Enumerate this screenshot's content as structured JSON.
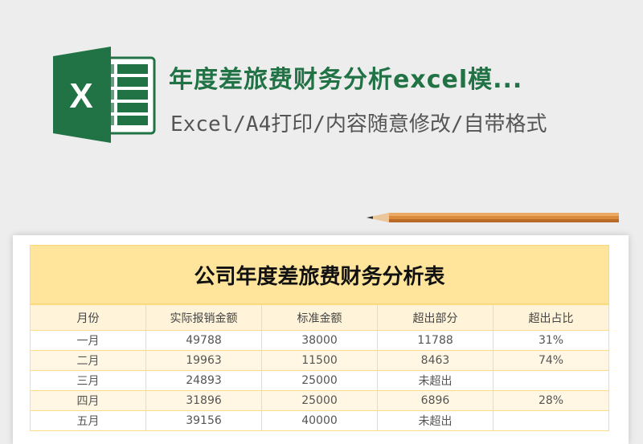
{
  "header": {
    "title": "年度差旅费财务分析excel模...",
    "subtitle": "Excel/A4打印/内容随意修改/自带格式",
    "logo_letter": "X",
    "brand_color": "#217346"
  },
  "sheet": {
    "title": "公司年度差旅费财务分析表",
    "columns": [
      "月份",
      "实际报销金额",
      "标准金额",
      "超出部分",
      "超出占比"
    ],
    "rows": [
      [
        "一月",
        "49788",
        "38000",
        "11788",
        "31%"
      ],
      [
        "二月",
        "19963",
        "11500",
        "8463",
        "74%"
      ],
      [
        "三月",
        "24893",
        "25000",
        "未超出",
        ""
      ],
      [
        "四月",
        "31896",
        "25000",
        "6896",
        "28%"
      ],
      [
        "五月",
        "39156",
        "40000",
        "未超出",
        ""
      ]
    ]
  }
}
